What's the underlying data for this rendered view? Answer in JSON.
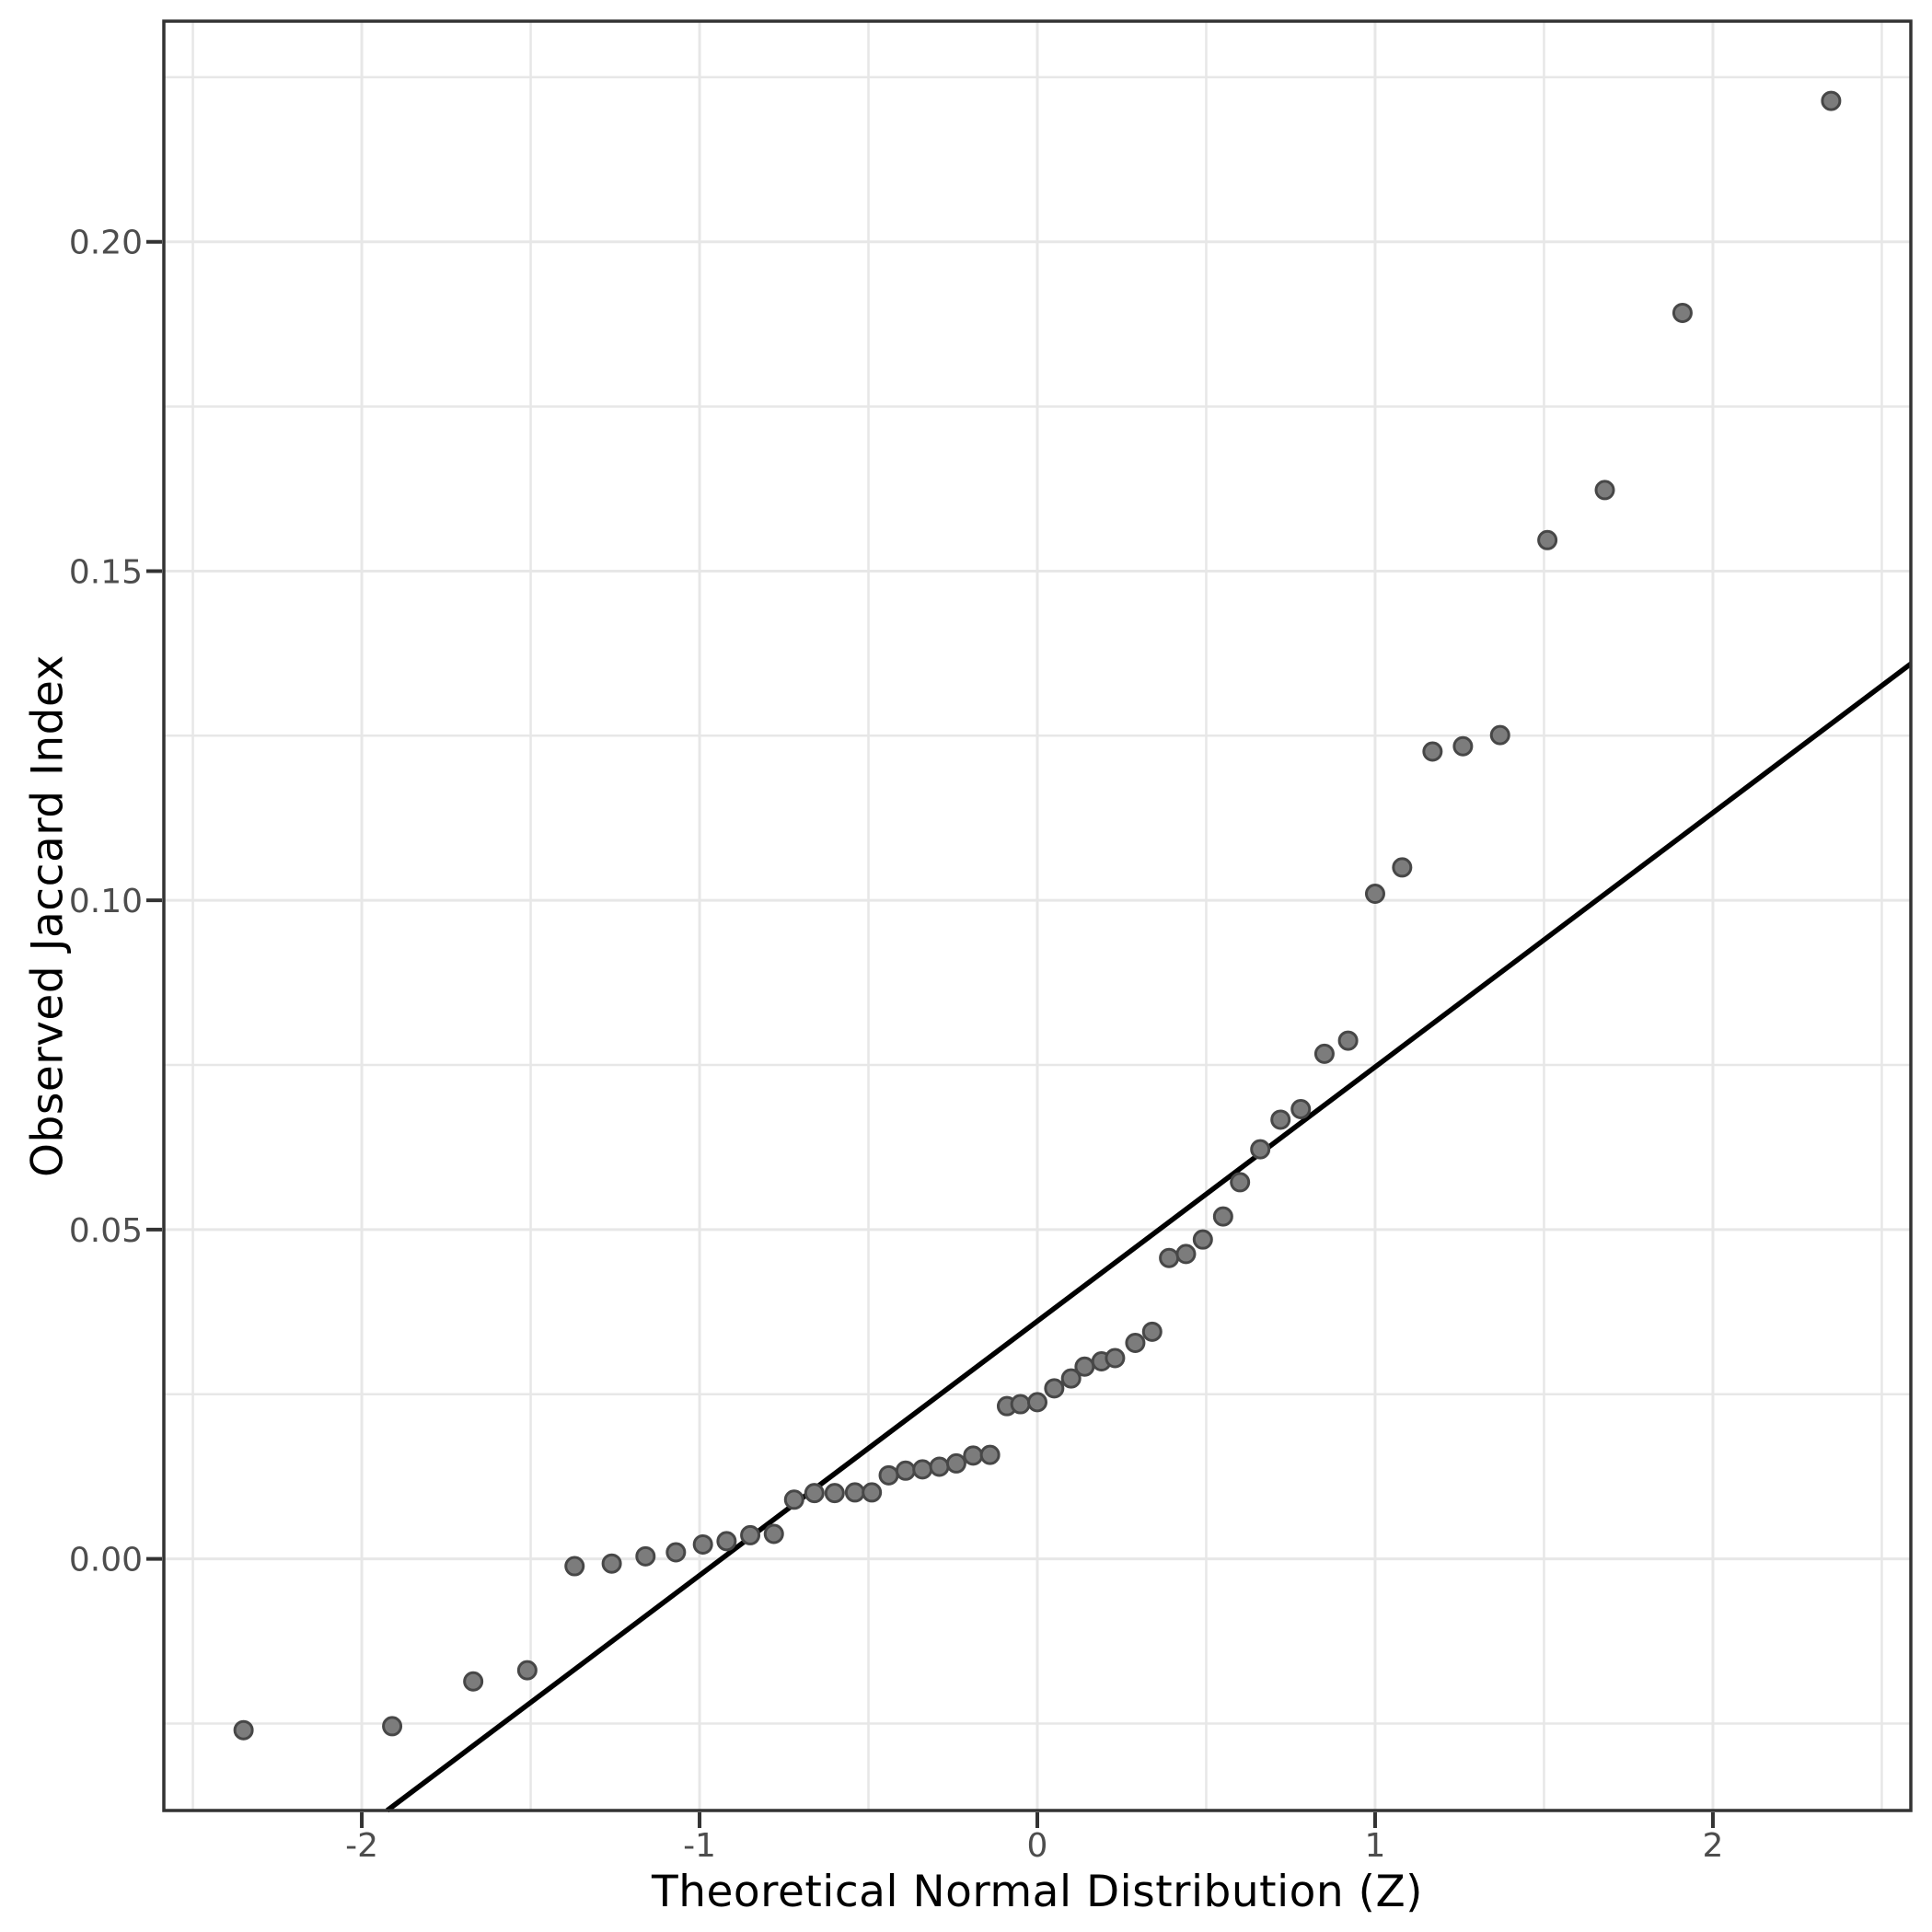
{
  "page": {
    "background_color": "#ffffff"
  },
  "chart_data": {
    "type": "scatter",
    "subtype": "qq-plot",
    "title": "",
    "xlabel": "Theoretical Normal Distribution (Z)",
    "ylabel": "Observed Jaccard Index",
    "xlim": [
      -2.586,
      2.586
    ],
    "ylim": [
      -0.0382,
      0.2335
    ],
    "grid": {
      "major": true,
      "minor": true
    },
    "legend": "none",
    "x_ticks": [
      {
        "value": -2,
        "label": "-2"
      },
      {
        "value": -1,
        "label": "-1"
      },
      {
        "value": 0,
        "label": "0"
      },
      {
        "value": 1,
        "label": "1"
      },
      {
        "value": 2,
        "label": "2"
      }
    ],
    "y_ticks": [
      {
        "value": 0.0,
        "label": "0.00"
      },
      {
        "value": 0.05,
        "label": "0.05"
      },
      {
        "value": 0.1,
        "label": "0.10"
      },
      {
        "value": 0.15,
        "label": "0.15"
      },
      {
        "value": 0.2,
        "label": "0.20"
      }
    ],
    "x_minor_ticks": [
      -2.5,
      -1.5,
      -0.5,
      0.5,
      1.5,
      2.5
    ],
    "y_minor_ticks": [
      -0.025,
      0.025,
      0.075,
      0.125,
      0.175,
      0.225
    ],
    "reference_line": {
      "name": "qq-fit-line",
      "slope": 0.0386,
      "intercept": 0.0361
    },
    "series": [
      {
        "name": "observed-jaccard-quantiles",
        "marker": "circle",
        "points": [
          [
            -2.35,
            -0.026
          ],
          [
            -1.91,
            -0.0254
          ],
          [
            -1.67,
            -0.0186
          ],
          [
            -1.51,
            -0.0169
          ],
          [
            -1.37,
            -0.0011
          ],
          [
            -1.26,
            -0.0007
          ],
          [
            -1.16,
            0.0004
          ],
          [
            -1.07,
            0.001
          ],
          [
            -0.99,
            0.0022
          ],
          [
            -0.92,
            0.0027
          ],
          [
            -0.85,
            0.0036
          ],
          [
            -0.78,
            0.0038
          ],
          [
            -0.72,
            0.009
          ],
          [
            -0.66,
            0.01
          ],
          [
            -0.6,
            0.01
          ],
          [
            -0.54,
            0.0101
          ],
          [
            -0.49,
            0.0101
          ],
          [
            -0.44,
            0.0127
          ],
          [
            -0.39,
            0.0134
          ],
          [
            -0.34,
            0.0136
          ],
          [
            -0.29,
            0.014
          ],
          [
            -0.24,
            0.0145
          ],
          [
            -0.19,
            0.0157
          ],
          [
            -0.14,
            0.0158
          ],
          [
            -0.09,
            0.0232
          ],
          [
            -0.05,
            0.0235
          ],
          [
            0.0,
            0.0238
          ],
          [
            0.05,
            0.0259
          ],
          [
            0.1,
            0.0274
          ],
          [
            0.14,
            0.0292
          ],
          [
            0.19,
            0.03
          ],
          [
            0.23,
            0.0305
          ],
          [
            0.29,
            0.0328
          ],
          [
            0.34,
            0.0345
          ],
          [
            0.39,
            0.0457
          ],
          [
            0.44,
            0.0463
          ],
          [
            0.49,
            0.0485
          ],
          [
            0.55,
            0.052
          ],
          [
            0.6,
            0.0572
          ],
          [
            0.66,
            0.0622
          ],
          [
            0.72,
            0.0667
          ],
          [
            0.78,
            0.0683
          ],
          [
            0.85,
            0.0767
          ],
          [
            0.92,
            0.0787
          ],
          [
            1.0,
            0.101
          ],
          [
            1.08,
            0.105
          ],
          [
            1.17,
            0.1226
          ],
          [
            1.26,
            0.1234
          ],
          [
            1.37,
            0.1251
          ],
          [
            1.51,
            0.1547
          ],
          [
            1.68,
            0.1623
          ],
          [
            1.91,
            0.1892
          ],
          [
            2.35,
            0.2214
          ]
        ]
      }
    ],
    "colors": {
      "point_fill": "#7c7c7c",
      "point_stroke": "#474747",
      "reference_line": "#000000",
      "grid_line": "#e7e7e7",
      "panel_border": "#333333",
      "tick_mark": "#333333",
      "tick_label": "#4d4d4d",
      "axis_title": "#000000",
      "background": "#ffffff"
    }
  }
}
